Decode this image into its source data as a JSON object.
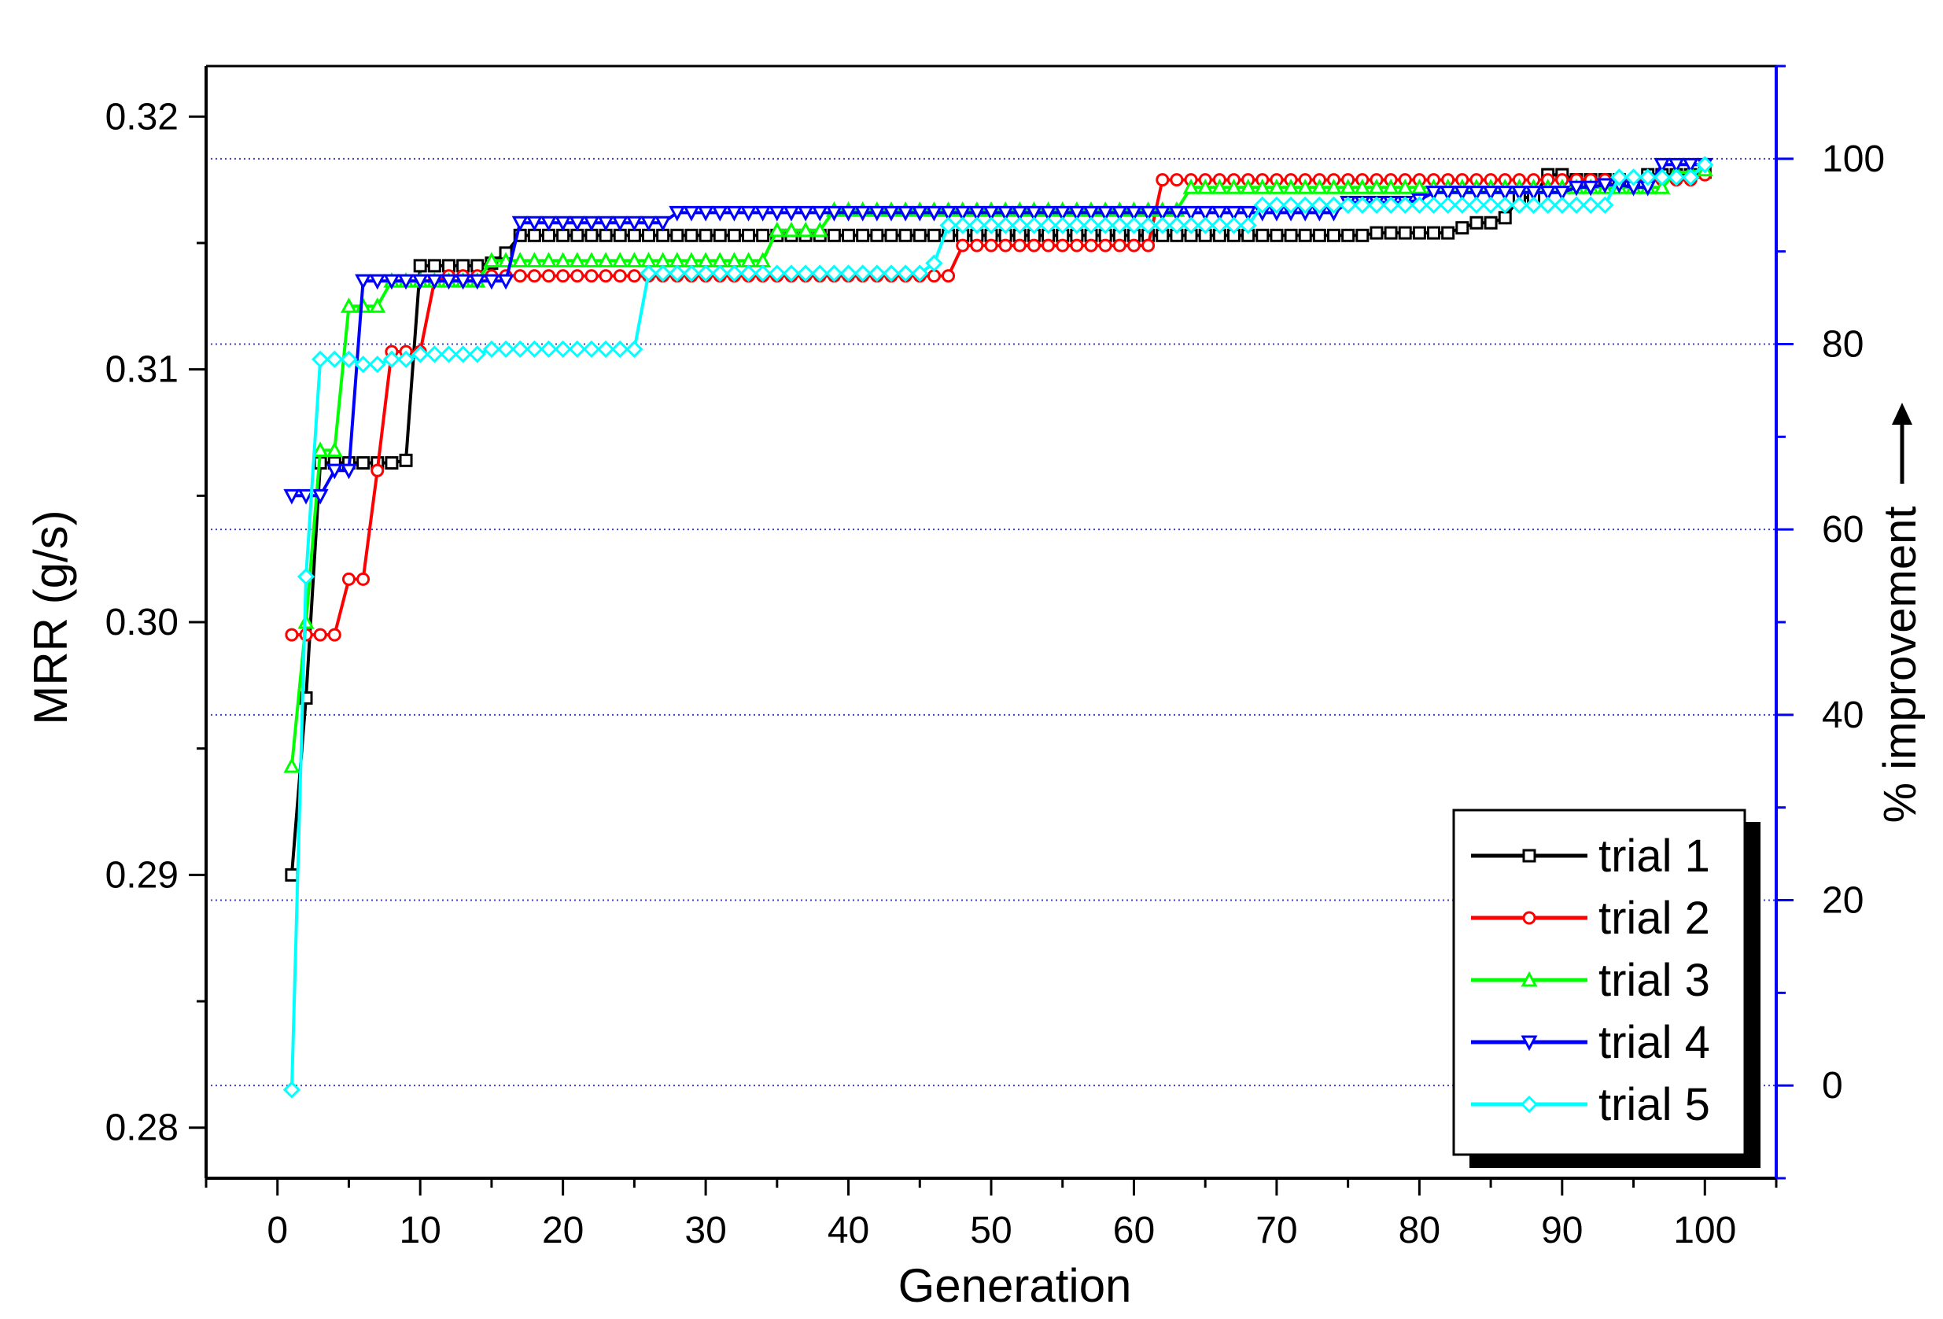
{
  "chart_data": {
    "type": "line",
    "title": "",
    "xlabel": "Generation",
    "ylabel": "MRR (g/s)",
    "y2label": "% improvement",
    "xlim": [
      -5,
      105
    ],
    "ylim": [
      0.278,
      0.322
    ],
    "y2lim": [
      -10,
      110
    ],
    "x_ticks": [
      0,
      10,
      20,
      30,
      40,
      50,
      60,
      70,
      80,
      90,
      100
    ],
    "x_tick_labels": [
      "0",
      "10",
      "20",
      "30",
      "40",
      "50",
      "60",
      "70",
      "80",
      "90",
      "100"
    ],
    "y_ticks": [
      0.28,
      0.29,
      0.3,
      0.31,
      0.32
    ],
    "y_tick_labels": [
      "0.28",
      "0.29",
      "0.30",
      "0.31",
      "0.32"
    ],
    "y2_ticks": [
      0,
      20,
      40,
      60,
      80,
      100
    ],
    "y2_tick_labels": [
      "0",
      "20",
      "40",
      "60",
      "80",
      "100"
    ],
    "y2_gridlines": true,
    "legend_position": "bottom-right",
    "series": [
      {
        "name": "trial 1",
        "color": "#000000",
        "marker": "square",
        "steps": [
          [
            1,
            0.29
          ],
          [
            2,
            0.297
          ],
          [
            3,
            0.3063
          ],
          [
            9,
            0.3064
          ],
          [
            10,
            0.3141
          ],
          [
            15,
            0.3142
          ],
          [
            16,
            0.3146
          ],
          [
            17,
            0.3153
          ],
          [
            76,
            0.3153
          ],
          [
            77,
            0.3154
          ],
          [
            83,
            0.3156
          ],
          [
            84,
            0.3158
          ],
          [
            86,
            0.316
          ],
          [
            87,
            0.3168
          ],
          [
            89,
            0.3177
          ],
          [
            91,
            0.3175
          ],
          [
            95,
            0.3174
          ],
          [
            96,
            0.3177
          ],
          [
            100,
            0.3178
          ]
        ]
      },
      {
        "name": "trial 2",
        "color": "#ff0000",
        "marker": "circle",
        "steps": [
          [
            1,
            0.2995
          ],
          [
            4,
            0.2995
          ],
          [
            5,
            0.3017
          ],
          [
            7,
            0.306
          ],
          [
            8,
            0.3107
          ],
          [
            9,
            0.3107
          ],
          [
            11,
            0.3135
          ],
          [
            12,
            0.3137
          ],
          [
            47,
            0.3137
          ],
          [
            48,
            0.3149
          ],
          [
            58,
            0.3149
          ],
          [
            62,
            0.3175
          ],
          [
            100,
            0.3177
          ]
        ]
      },
      {
        "name": "trial 3",
        "color": "#00ff00",
        "marker": "triangle-up",
        "steps": [
          [
            1,
            0.2943
          ],
          [
            2,
            0.3
          ],
          [
            3,
            0.3068
          ],
          [
            5,
            0.3125
          ],
          [
            6,
            0.3125
          ],
          [
            7,
            0.3125
          ],
          [
            8,
            0.3135
          ],
          [
            15,
            0.3143
          ],
          [
            35,
            0.3155
          ],
          [
            39,
            0.3163
          ],
          [
            63,
            0.3163
          ],
          [
            64,
            0.3172
          ],
          [
            97,
            0.3172
          ],
          [
            98,
            0.3178
          ],
          [
            100,
            0.3179
          ]
        ]
      },
      {
        "name": "trial 4",
        "color": "#0000ff",
        "marker": "triangle-down",
        "steps": [
          [
            1,
            0.305
          ],
          [
            3,
            0.305
          ],
          [
            4,
            0.306
          ],
          [
            6,
            0.3135
          ],
          [
            16,
            0.3135
          ],
          [
            17,
            0.3158
          ],
          [
            27,
            0.3158
          ],
          [
            28,
            0.3162
          ],
          [
            74,
            0.3162
          ],
          [
            75,
            0.3166
          ],
          [
            80,
            0.3167
          ],
          [
            81,
            0.317
          ],
          [
            91,
            0.3172
          ],
          [
            93,
            0.3173
          ],
          [
            95,
            0.3172
          ],
          [
            97,
            0.3181
          ],
          [
            100,
            0.3181
          ]
        ]
      },
      {
        "name": "trial 5",
        "color": "#00ffff",
        "marker": "diamond",
        "steps": [
          [
            1,
            0.2815
          ],
          [
            2,
            0.3018
          ],
          [
            3,
            0.3104
          ],
          [
            5,
            0.3104
          ],
          [
            6,
            0.3102
          ],
          [
            8,
            0.3104
          ],
          [
            10,
            0.3106
          ],
          [
            15,
            0.3108
          ],
          [
            25,
            0.3108
          ],
          [
            26,
            0.3138
          ],
          [
            46,
            0.3142
          ],
          [
            47,
            0.3157
          ],
          [
            68,
            0.3157
          ],
          [
            69,
            0.3165
          ],
          [
            93,
            0.3165
          ],
          [
            94,
            0.3176
          ],
          [
            100,
            0.3181
          ]
        ]
      }
    ]
  }
}
